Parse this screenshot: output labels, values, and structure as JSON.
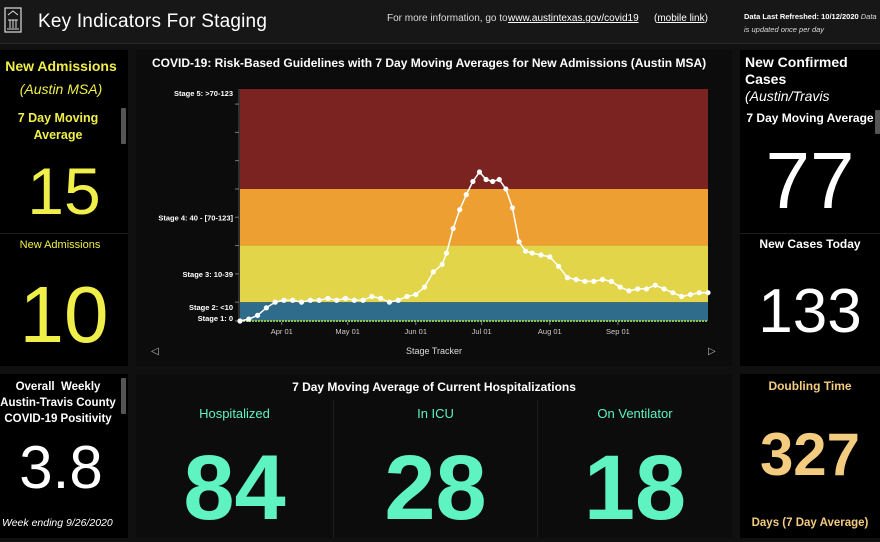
{
  "header": {
    "title": "Key Indicators For Staging",
    "info_text": "For more information, go to",
    "info_link": "www.austintexas.gov/covid19",
    "mobile_open": "(",
    "mobile_link": "mobile link",
    "mobile_close": ")",
    "refresh_label": "Data Last Refreshed:",
    "refresh_date": "10/12/2020",
    "refresh_note": "Data is updated once per day"
  },
  "left_top": {
    "title": "New Admissions",
    "subtitle": "(Austin MSA)",
    "avg_label_1": "7 Day Moving",
    "avg_label_2": "Average",
    "avg_value": "15",
    "today_label": "New Admissions",
    "today_value": "10"
  },
  "right_top": {
    "title_1": "New Confirmed",
    "title_2": "Cases",
    "subtitle": "(Austin/Travis",
    "avg_label": "7 Day Moving Average",
    "avg_value": "77",
    "today_label": "New Cases Today",
    "today_value": "133"
  },
  "left_bottom": {
    "title_1": "Overall  Weekly",
    "title_2": "Austin-Travis County",
    "title_3": "COVID-19 Positivity",
    "value": "3.8",
    "footer": "Week ending 9/26/2020"
  },
  "right_bottom": {
    "title": "Doubling Time",
    "value": "327",
    "footer": "Days (7 Day Average)"
  },
  "hospitalizations": {
    "title": "7 Day Moving Average of Current Hospitalizations",
    "items": [
      {
        "label": "Hospitalized",
        "value": "84"
      },
      {
        "label": "In ICU",
        "value": "28"
      },
      {
        "label": "On Ventilator",
        "value": "18"
      }
    ]
  },
  "chart_nav": {
    "label": "Stage Tracker",
    "prev_icon": "chevron-left-icon",
    "next_icon": "chevron-right-icon"
  },
  "colors": {
    "stage5": "#7b2320",
    "stage4": "#ee9f32",
    "stage3": "#e3d54a",
    "stage2": "#2f6b8a",
    "stage1": "#8bc34a",
    "yellow_accent": "#f0ef4a",
    "green_accent": "#5ef3c0",
    "tan_accent": "#f4cc80"
  },
  "chart_data": {
    "type": "line",
    "title": "COVID-19: Risk-Based Guidelines with 7 Day Moving Averages for New Admissions (Austin MSA)",
    "xlabel": "",
    "ylabel": "",
    "x_tick_labels": [
      "Apr 01",
      "May 01",
      "Jun 01",
      "Jul 01",
      "Aug 01",
      "Sep 01"
    ],
    "x_ticks": [
      "2020-04-01",
      "2020-05-01",
      "2020-06-01",
      "2020-07-01",
      "2020-08-01",
      "2020-09-01"
    ],
    "xlim": [
      "2020-03-13",
      "2020-10-12"
    ],
    "ylim": [
      0,
      123
    ],
    "stage_bands": [
      {
        "label": "Stage 1: 0",
        "from": 0,
        "to": 0
      },
      {
        "label": "Stage 2: <10",
        "from": 0,
        "to": 10
      },
      {
        "label": "Stage 3: 10-39",
        "from": 10,
        "to": 40
      },
      {
        "label": "Stage 4: 40 - [70-123]",
        "from": 40,
        "to": 70
      },
      {
        "label": "Stage 5: >70-123",
        "from": 70,
        "to": 100
      }
    ],
    "grid": false,
    "series": [
      {
        "color": "#ffffff",
        "x": [
          "2020-03-13",
          "2020-03-17",
          "2020-03-21",
          "2020-03-25",
          "2020-03-29",
          "2020-04-02",
          "2020-04-06",
          "2020-04-10",
          "2020-04-14",
          "2020-04-18",
          "2020-04-22",
          "2020-04-26",
          "2020-04-30",
          "2020-05-04",
          "2020-05-08",
          "2020-05-12",
          "2020-05-16",
          "2020-05-20",
          "2020-05-24",
          "2020-05-28",
          "2020-06-01",
          "2020-06-05",
          "2020-06-09",
          "2020-06-13",
          "2020-06-15",
          "2020-06-18",
          "2020-06-21",
          "2020-06-24",
          "2020-06-27",
          "2020-06-30",
          "2020-07-03",
          "2020-07-06",
          "2020-07-09",
          "2020-07-12",
          "2020-07-15",
          "2020-07-18",
          "2020-07-21",
          "2020-07-24",
          "2020-07-28",
          "2020-08-01",
          "2020-08-05",
          "2020-08-09",
          "2020-08-13",
          "2020-08-17",
          "2020-08-21",
          "2020-08-25",
          "2020-08-29",
          "2020-09-02",
          "2020-09-06",
          "2020-09-10",
          "2020-09-14",
          "2020-09-18",
          "2020-09-22",
          "2020-09-26",
          "2020-09-30",
          "2020-10-04",
          "2020-10-08",
          "2020-10-12"
        ],
        "values": [
          0,
          1,
          3,
          7,
          10,
          11,
          11,
          10,
          11,
          11,
          12,
          11,
          12,
          11,
          11,
          13,
          12,
          10,
          11,
          13,
          14,
          18,
          26,
          30,
          36,
          49,
          59,
          67,
          74,
          79,
          75,
          74,
          75,
          70,
          60,
          42,
          37,
          36,
          35,
          34,
          29,
          23,
          22,
          21,
          21,
          22,
          21,
          18,
          16,
          17,
          17,
          19,
          17,
          15,
          13,
          14,
          15,
          15
        ]
      }
    ]
  }
}
